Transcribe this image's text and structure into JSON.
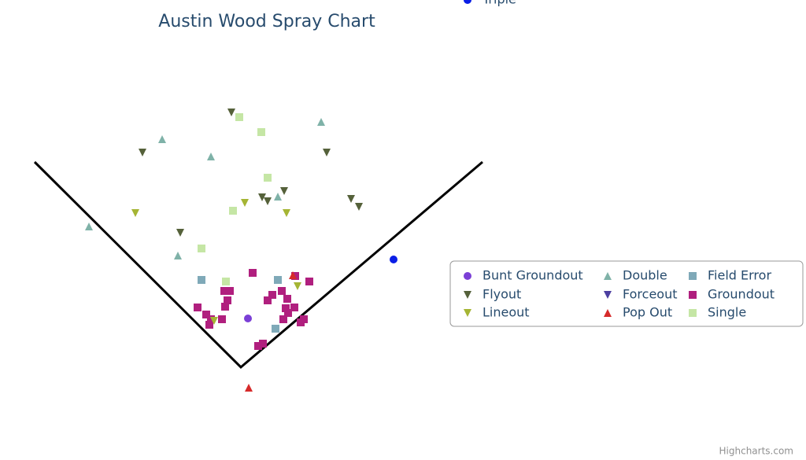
{
  "chart_data": {
    "type": "scatter",
    "title": "Austin Wood Spray Chart",
    "credits": "Highcharts.com",
    "xlim": [
      -296,
      314
    ],
    "ylim": [
      -50,
      350
    ],
    "legend": "right",
    "series": [
      {
        "name": "Bunt Groundout",
        "color": "#7b3fd6",
        "marker": "circle",
        "x": [
          9
        ],
        "values": [
          62
        ]
      },
      {
        "name": "Double",
        "color": "#7fb2a8",
        "marker": "triangle",
        "x": [
          102,
          -100,
          -38,
          -193,
          -80,
          47
        ],
        "values": [
          312,
          290,
          268,
          179,
          142,
          217
        ]
      },
      {
        "name": "Field Error",
        "color": "#7fa9b8",
        "marker": "square",
        "x": [
          -50,
          47,
          44
        ],
        "values": [
          111,
          111,
          49
        ]
      },
      {
        "name": "Flyout",
        "color": "#55613a",
        "marker": "triangle-down",
        "x": [
          -12,
          -125,
          109,
          -77,
          27,
          34,
          55,
          140,
          150
        ],
        "values": [
          324,
          273,
          273,
          171,
          216,
          211,
          224,
          214,
          204
        ]
      },
      {
        "name": "Forceout",
        "color": "#4c3fa0",
        "marker": "triangle-down",
        "x": [],
        "values": []
      },
      {
        "name": "Groundout",
        "color": "#b01f7e",
        "marker": "square",
        "x": [
          15,
          69,
          87,
          -14,
          -21,
          52,
          40,
          34,
          59,
          -17,
          -20,
          -55,
          57,
          68,
          -44,
          -38,
          -24,
          60,
          80,
          76,
          54,
          -40,
          28,
          22
        ],
        "values": [
          120,
          116,
          109,
          97,
          97,
          97,
          92,
          85,
          87,
          85,
          77,
          76,
          75,
          76,
          67,
          61,
          61,
          69,
          61,
          57,
          61,
          54,
          30,
          27
        ]
      },
      {
        "name": "Lineout",
        "color": "#a5b534",
        "marker": "triangle-down",
        "x": [
          -134,
          5,
          58,
          72,
          -34
        ],
        "values": [
          196,
          209,
          196,
          103,
          59
        ]
      },
      {
        "name": "Pop Out",
        "color": "#d62a2a",
        "marker": "triangle",
        "x": [
          10,
          66
        ],
        "values": [
          -26,
          117
        ]
      },
      {
        "name": "Single",
        "color": "#c5e6a5",
        "marker": "square",
        "x": [
          -2,
          26,
          34,
          -10,
          -50,
          -19
        ],
        "values": [
          318,
          299,
          241,
          199,
          151,
          109
        ]
      },
      {
        "name": "Triple",
        "color": "#0a1ee6",
        "marker": "circle",
        "x": [
          194
        ],
        "values": [
          137
        ]
      }
    ]
  }
}
